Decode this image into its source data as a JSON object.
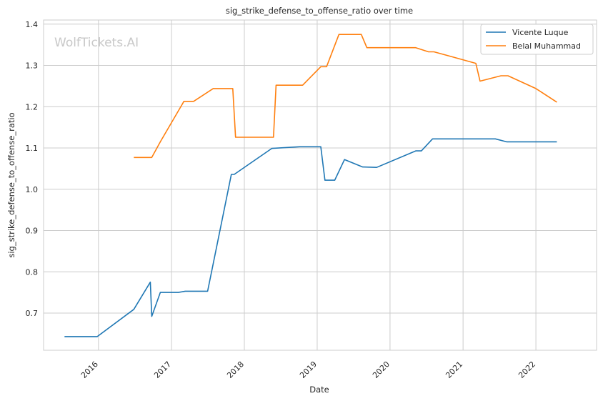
{
  "watermark": "WolfTickets.AI",
  "chart_data": {
    "type": "line",
    "title": "sig_strike_defense_to_offense_ratio over time",
    "xlabel": "Date",
    "ylabel": "sig_strike_defense_to_offense_ratio",
    "xlim": [
      "2015-04-01",
      "2022-11-01"
    ],
    "ylim": [
      0.61,
      1.41
    ],
    "x_ticks": [
      "2016",
      "2017",
      "2018",
      "2019",
      "2020",
      "2021",
      "2022"
    ],
    "y_ticks": [
      0.7,
      0.8,
      0.9,
      1.0,
      1.1,
      1.2,
      1.3,
      1.4
    ],
    "grid": true,
    "legend_position": "top-right",
    "series": [
      {
        "name": "Vicente Luque",
        "color": "#1f77b4",
        "x": [
          "2015-07-15",
          "2015-12-26",
          "2016-06-26",
          "2016-09-17",
          "2016-09-24",
          "2016-11-06",
          "2017-02-04",
          "2017-03-11",
          "2017-07-01",
          "2017-10-28",
          "2017-11-11",
          "2018-05-19",
          "2018-10-06",
          "2019-01-19",
          "2019-02-09",
          "2019-03-30",
          "2019-05-18",
          "2019-08-17",
          "2019-10-26",
          "2020-05-09",
          "2020-06-06",
          "2020-08-01",
          "2021-02-13",
          "2021-06-12",
          "2021-08-07",
          "2022-04-16"
        ],
        "y": [
          0.643,
          0.643,
          0.709,
          0.775,
          0.692,
          0.75,
          0.75,
          0.753,
          0.753,
          1.036,
          1.036,
          1.099,
          1.103,
          1.103,
          1.022,
          1.022,
          1.072,
          1.054,
          1.053,
          1.093,
          1.093,
          1.122,
          1.122,
          1.122,
          1.115,
          1.115
        ]
      },
      {
        "name": "Belal Muhammad",
        "color": "#ff7f0e",
        "x": [
          "2016-06-26",
          "2016-09-24",
          "2016-11-06",
          "2017-03-04",
          "2017-04-22",
          "2017-07-29",
          "2017-11-04",
          "2017-11-18",
          "2018-05-27",
          "2018-06-09",
          "2018-10-20",
          "2019-01-19",
          "2019-02-17",
          "2019-04-20",
          "2019-08-10",
          "2019-09-07",
          "2020-05-09",
          "2020-07-12",
          "2020-08-08",
          "2021-03-06",
          "2021-03-27",
          "2021-07-10",
          "2021-08-14",
          "2022-01-01",
          "2022-04-16"
        ],
        "y": [
          1.077,
          1.077,
          1.115,
          1.213,
          1.213,
          1.244,
          1.244,
          1.126,
          1.126,
          1.252,
          1.252,
          1.297,
          1.297,
          1.375,
          1.375,
          1.343,
          1.343,
          1.333,
          1.333,
          1.305,
          1.262,
          1.275,
          1.275,
          1.244,
          1.211
        ]
      }
    ]
  }
}
